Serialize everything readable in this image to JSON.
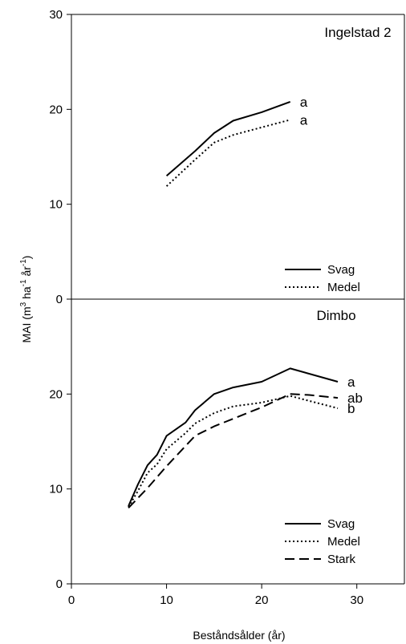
{
  "chart_data": [
    {
      "type": "line",
      "title": "Ingelstad 2",
      "ylabel": "MAI (m³ ha⁻¹ år⁻¹)",
      "xlim": [
        0,
        35
      ],
      "ylim": [
        0,
        30
      ],
      "yticks": [
        "0",
        "10",
        "20",
        "30"
      ],
      "grid": false,
      "legend_position": "bottom-right",
      "series": [
        {
          "name": "Svag",
          "style": "solid",
          "x": [
            10,
            13,
            15,
            17,
            20,
            23
          ],
          "y": [
            13.0,
            15.6,
            17.5,
            18.8,
            19.7,
            20.8
          ],
          "annotation": "a"
        },
        {
          "name": "Medel",
          "style": "dotted",
          "x": [
            10,
            13,
            15,
            17,
            20,
            23
          ],
          "y": [
            11.9,
            14.7,
            16.5,
            17.3,
            18.1,
            18.9
          ],
          "annotation": "a"
        }
      ]
    },
    {
      "type": "line",
      "title": "Dimbo",
      "xlabel": "Beståndsålder (år)",
      "xlim": [
        0,
        35
      ],
      "ylim": [
        0,
        30
      ],
      "xticks": [
        "0",
        "10",
        "20",
        "30"
      ],
      "yticks": [
        "0",
        "10",
        "20"
      ],
      "grid": false,
      "legend_position": "bottom-right",
      "series": [
        {
          "name": "Svag",
          "style": "solid",
          "x": [
            6,
            7,
            8,
            9,
            10,
            12,
            13,
            15,
            17,
            20,
            23,
            28
          ],
          "y": [
            8.2,
            10.5,
            12.5,
            13.6,
            15.6,
            17.0,
            18.3,
            20.0,
            20.7,
            21.3,
            22.7,
            21.3
          ],
          "annotation": "a"
        },
        {
          "name": "Medel",
          "style": "dotted",
          "x": [
            6,
            7,
            8,
            9,
            10,
            12,
            13,
            15,
            17,
            20,
            23,
            28
          ],
          "y": [
            8.1,
            9.8,
            11.7,
            12.6,
            14.2,
            15.9,
            16.9,
            18.0,
            18.7,
            19.1,
            19.8,
            18.5
          ],
          "annotation": "b"
        },
        {
          "name": "Stark",
          "style": "dashed",
          "x": [
            6,
            8,
            10,
            13,
            15,
            17,
            20,
            23,
            25,
            28
          ],
          "y": [
            8.0,
            10.1,
            12.4,
            15.6,
            16.6,
            17.4,
            18.6,
            20.0,
            19.9,
            19.6
          ],
          "annotation": "ab"
        }
      ]
    }
  ]
}
